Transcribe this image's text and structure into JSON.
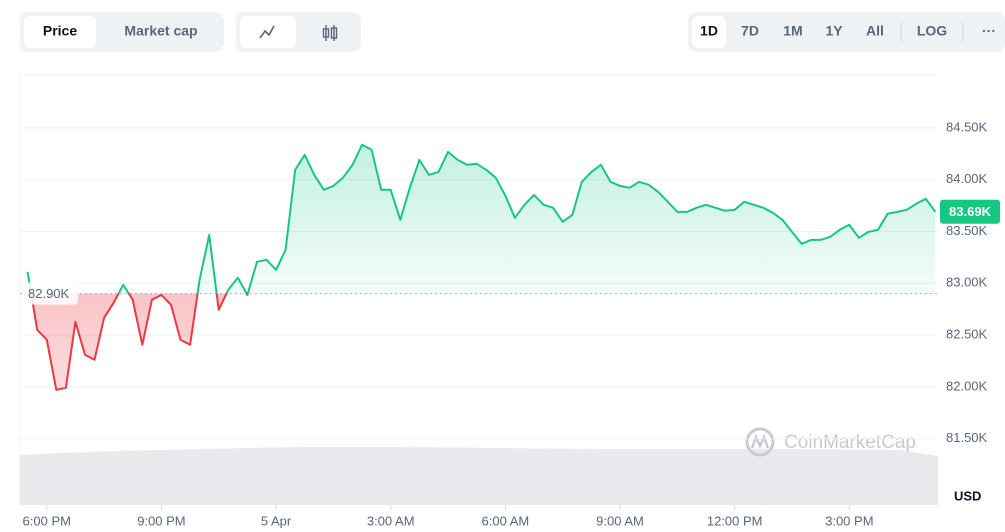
{
  "toolbar": {
    "tabs": [
      "Price",
      "Market cap"
    ],
    "ranges": [
      "1D",
      "7D",
      "1M",
      "1Y",
      "All"
    ],
    "log": "LOG",
    "more": "···"
  },
  "chart_data": {
    "type": "line",
    "x": [
      -0.5,
      -0.25,
      0,
      0.25,
      0.5,
      0.75,
      1,
      1.25,
      1.5,
      1.75,
      2,
      2.25,
      2.5,
      2.75,
      3,
      3.25,
      3.5,
      3.75,
      4,
      4.25,
      4.5,
      4.75,
      5,
      5.25,
      5.5,
      5.75,
      6,
      6.25,
      6.5,
      6.75,
      7,
      7.25,
      7.5,
      7.75,
      8,
      8.25,
      8.5,
      8.75,
      9,
      9.25,
      9.5,
      9.75,
      10,
      10.25,
      10.5,
      10.75,
      11,
      11.25,
      11.5,
      11.75,
      12,
      12.25,
      12.5,
      12.75,
      13,
      13.25,
      13.5,
      13.75,
      14,
      14.25,
      14.5,
      14.75,
      15,
      15.25,
      15.5,
      15.75,
      16,
      16.25,
      16.5,
      16.75,
      17,
      17.25,
      17.5,
      17.75,
      18,
      18.25,
      18.5,
      18.75,
      19,
      19.25,
      19.5,
      19.75,
      20,
      20.25,
      20.5,
      20.75,
      21,
      21.25,
      21.5,
      21.75,
      22,
      22.25,
      22.5,
      22.75,
      23,
      23.25
    ],
    "values": [
      83110,
      82551,
      82454,
      81972,
      81991,
      82628,
      82310,
      82261,
      82667,
      82811,
      82985,
      82840,
      82406,
      82840,
      82888,
      82792,
      82454,
      82406,
      83033,
      83467,
      82744,
      82937,
      83053,
      82888,
      83207,
      83226,
      83130,
      83323,
      84095,
      84239,
      84046,
      83902,
      83940,
      84018,
      84143,
      84336,
      84288,
      83902,
      83902,
      83612,
      83921,
      84191,
      84046,
      84075,
      84268,
      84191,
      84143,
      84153,
      84095,
      84018,
      83844,
      83632,
      83757,
      83853,
      83757,
      83728,
      83593,
      83660,
      83979,
      84075,
      84143,
      83979,
      83940,
      83921,
      83979,
      83950,
      83882,
      83786,
      83689,
      83689,
      83728,
      83757,
      83728,
      83699,
      83709,
      83786,
      83757,
      83728,
      83680,
      83612,
      83496,
      83381,
      83419,
      83419,
      83448,
      83516,
      83564,
      83439,
      83496,
      83516,
      83670,
      83689,
      83709,
      83767,
      83815,
      83690
    ],
    "up_color": "#16c784",
    "down_color": "#ea3943",
    "baseline": {
      "value": 82900,
      "label": "82.90K"
    },
    "last_label": {
      "value": 83690,
      "label": "83.69K"
    },
    "xlim": [
      -0.7,
      23.32
    ],
    "xticks": [
      {
        "value": 0,
        "label": "6:00 PM"
      },
      {
        "value": 3,
        "label": "9:00 PM"
      },
      {
        "value": 6,
        "label": "5 Apr"
      },
      {
        "value": 9,
        "label": "3:00 AM"
      },
      {
        "value": 12,
        "label": "6:00 AM"
      },
      {
        "value": 15,
        "label": "9:00 AM"
      },
      {
        "value": 18,
        "label": "12:00 PM"
      },
      {
        "value": 21,
        "label": "3:00 PM"
      }
    ],
    "ylim": [
      80860,
      85010
    ],
    "yticks": [
      {
        "value": 81500,
        "label": "81.50K"
      },
      {
        "value": 82000,
        "label": "82.00K"
      },
      {
        "value": 82500,
        "label": "82.50K"
      },
      {
        "value": 83000,
        "label": "83.00K"
      },
      {
        "value": 83500,
        "label": "83.50K"
      },
      {
        "value": 84000,
        "label": "84.00K"
      },
      {
        "value": 84500,
        "label": "84.50K"
      }
    ],
    "y_unit": "USD",
    "grid": true,
    "watermark": "CoinMarketCap"
  }
}
